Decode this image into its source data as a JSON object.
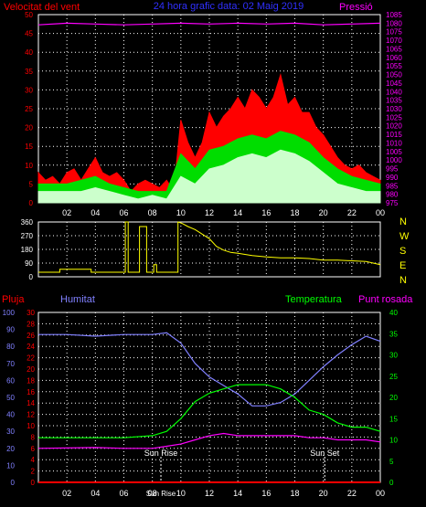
{
  "header": {
    "wind_label": "Velocitat del vent",
    "title": "24 hora grafic  data: 02 Maig 2019",
    "pressure_label": "Pressió"
  },
  "colors": {
    "wind_gust": "#ff0000",
    "wind_avg": "#00dd00",
    "wind_min": "#ccffcc",
    "pressure": "#ff00ff",
    "direction": "#ffff00",
    "humidity": "#8080ff",
    "temperature": "#00ff00",
    "dew_point": "#ff00ff",
    "rain": "#ff0000",
    "axis_left": "#ff0000",
    "axis_right": "#ff00ff",
    "axis_green": "#00ff00",
    "axis_blue": "#8080ff",
    "frame": "#ffffff",
    "title": "#3030ff"
  },
  "time_ticks": [
    "02",
    "04",
    "06",
    "08",
    "10",
    "12",
    "14",
    "16",
    "18",
    "20",
    "22",
    "00"
  ],
  "chart_data": [
    {
      "type": "line",
      "title": "24 hora grafic  data: 02 Maig 2019",
      "ylabel": "Velocitat del vent",
      "y2label": "Pressió",
      "ylim": [
        0,
        50
      ],
      "y_ticks": [
        0,
        5,
        10,
        15,
        20,
        25,
        30,
        35,
        40,
        45,
        50
      ],
      "y2lim": [
        975,
        1085
      ],
      "y2_ticks": [
        975,
        980,
        985,
        990,
        995,
        1000,
        1005,
        1010,
        1015,
        1020,
        1025,
        1030,
        1035,
        1040,
        1045,
        1050,
        1055,
        1060,
        1065,
        1070,
        1075,
        1080,
        1085
      ],
      "x_unit": "hour",
      "xlim": [
        0,
        24
      ],
      "series": [
        {
          "key": "gust",
          "points": [
            [
              0,
              8
            ],
            [
              0.5,
              6
            ],
            [
              1,
              7
            ],
            [
              1.5,
              5
            ],
            [
              2,
              8
            ],
            [
              2.5,
              9
            ],
            [
              3,
              6
            ],
            [
              3.5,
              9
            ],
            [
              4,
              12
            ],
            [
              4.5,
              8
            ],
            [
              5,
              7
            ],
            [
              5.5,
              8
            ],
            [
              6,
              6
            ],
            [
              6.5,
              3
            ],
            [
              7,
              5
            ],
            [
              7.5,
              6
            ],
            [
              8,
              5
            ],
            [
              8.5,
              4
            ],
            [
              9,
              6
            ],
            [
              9.5,
              3
            ],
            [
              10,
              22
            ],
            [
              10.5,
              16
            ],
            [
              11,
              12
            ],
            [
              11.5,
              16
            ],
            [
              12,
              24
            ],
            [
              12.5,
              20
            ],
            [
              13,
              23
            ],
            [
              13.5,
              25
            ],
            [
              14,
              28
            ],
            [
              14.5,
              25
            ],
            [
              15,
              30
            ],
            [
              15.5,
              28
            ],
            [
              16,
              25
            ],
            [
              16.5,
              28
            ],
            [
              17,
              34
            ],
            [
              17.5,
              26
            ],
            [
              18,
              28
            ],
            [
              18.5,
              24
            ],
            [
              19,
              24
            ],
            [
              19.5,
              20
            ],
            [
              20,
              18
            ],
            [
              20.5,
              15
            ],
            [
              21,
              12
            ],
            [
              21.5,
              10
            ],
            [
              22,
              9
            ],
            [
              22.5,
              10
            ],
            [
              23,
              8
            ],
            [
              23.5,
              7
            ],
            [
              24,
              6
            ]
          ]
        },
        {
          "key": "average",
          "points": [
            [
              0,
              5
            ],
            [
              1,
              5
            ],
            [
              2,
              5
            ],
            [
              3,
              6
            ],
            [
              4,
              7
            ],
            [
              5,
              5
            ],
            [
              6,
              4
            ],
            [
              7,
              3
            ],
            [
              8,
              3
            ],
            [
              9,
              3
            ],
            [
              10,
              13
            ],
            [
              11,
              9
            ],
            [
              12,
              14
            ],
            [
              13,
              15
            ],
            [
              14,
              17
            ],
            [
              15,
              18
            ],
            [
              16,
              17
            ],
            [
              17,
              19
            ],
            [
              18,
              18
            ],
            [
              19,
              16
            ],
            [
              20,
              12
            ],
            [
              21,
              9
            ],
            [
              22,
              7
            ],
            [
              23,
              6
            ],
            [
              24,
              5
            ]
          ]
        },
        {
          "key": "min",
          "points": [
            [
              0,
              3
            ],
            [
              1,
              3
            ],
            [
              2,
              3
            ],
            [
              3,
              3
            ],
            [
              4,
              4
            ],
            [
              5,
              3
            ],
            [
              6,
              2
            ],
            [
              7,
              1
            ],
            [
              8,
              2
            ],
            [
              9,
              1
            ],
            [
              10,
              7
            ],
            [
              11,
              5
            ],
            [
              12,
              9
            ],
            [
              13,
              10
            ],
            [
              14,
              12
            ],
            [
              15,
              13
            ],
            [
              16,
              12
            ],
            [
              17,
              14
            ],
            [
              18,
              13
            ],
            [
              19,
              11
            ],
            [
              20,
              8
            ],
            [
              21,
              5
            ],
            [
              22,
              4
            ],
            [
              23,
              3
            ],
            [
              24,
              3
            ]
          ]
        },
        {
          "key": "pressure",
          "points": [
            [
              0,
              1079
            ],
            [
              2,
              1080
            ],
            [
              4,
              1079.5
            ],
            [
              6,
              1079
            ],
            [
              8,
              1079.5
            ],
            [
              10,
              1080
            ],
            [
              12,
              1079.5
            ],
            [
              14,
              1080
            ],
            [
              16,
              1079.5
            ],
            [
              18,
              1080
            ],
            [
              20,
              1079
            ],
            [
              22,
              1079.5
            ],
            [
              24,
              1080
            ]
          ]
        }
      ]
    },
    {
      "type": "line",
      "ylabel": "",
      "ylim": [
        0,
        360
      ],
      "y_ticks": [
        0,
        90,
        180,
        270,
        360
      ],
      "y_right_labels": [
        "N",
        "W",
        "S",
        "E",
        "N"
      ],
      "x_unit": "hour",
      "xlim": [
        0,
        24
      ],
      "series": [
        {
          "key": "wind_direction",
          "points": [
            [
              0,
              30
            ],
            [
              1.5,
              30
            ],
            [
              1.5,
              50
            ],
            [
              3.7,
              50
            ],
            [
              3.7,
              30
            ],
            [
              6.1,
              30
            ],
            [
              6.1,
              360
            ],
            [
              6.3,
              360
            ],
            [
              6.3,
              30
            ],
            [
              7.1,
              30
            ],
            [
              7.1,
              330
            ],
            [
              7.6,
              330
            ],
            [
              7.6,
              30
            ],
            [
              8.1,
              30
            ],
            [
              8.1,
              80
            ],
            [
              8.3,
              80
            ],
            [
              8.3,
              30
            ],
            [
              9.8,
              30
            ],
            [
              9.8,
              360
            ],
            [
              10.1,
              350
            ],
            [
              10.5,
              330
            ],
            [
              11,
              310
            ],
            [
              11.5,
              280
            ],
            [
              12,
              250
            ],
            [
              12.5,
              200
            ],
            [
              13,
              175
            ],
            [
              13.5,
              160
            ],
            [
              14,
              155
            ],
            [
              15,
              140
            ],
            [
              16,
              130
            ],
            [
              17,
              125
            ],
            [
              18,
              125
            ],
            [
              19,
              120
            ],
            [
              20,
              110
            ],
            [
              21,
              110
            ],
            [
              22,
              105
            ],
            [
              23,
              100
            ],
            [
              24,
              80
            ]
          ]
        }
      ]
    },
    {
      "type": "line",
      "title": "",
      "labels": {
        "rain": "Pluja",
        "humidity": "Humitat",
        "temperature": "Temperatura",
        "dew_point": "Punt rosada"
      },
      "humidity_ylim": [
        0,
        100
      ],
      "humidity_ticks": [
        0,
        10,
        20,
        30,
        40,
        50,
        60,
        70,
        80,
        90,
        100
      ],
      "rain_ylim": [
        0,
        30
      ],
      "rain_ticks": [
        0,
        2,
        4,
        6,
        8,
        10,
        12,
        14,
        16,
        18,
        20,
        22,
        24,
        26,
        28,
        30
      ],
      "temp_ylim": [
        0,
        40
      ],
      "temp_ticks": [
        0,
        5,
        10,
        15,
        20,
        25,
        30,
        35,
        40
      ],
      "x_unit": "hour",
      "xlim": [
        0,
        24
      ],
      "annotations": [
        {
          "hour": 8.6,
          "text": "Sun Rise"
        },
        {
          "hour": 20.1,
          "text": "Sun Set"
        }
      ],
      "sun_rise_axis_label": "Sun Rise",
      "series": [
        {
          "key": "humidity",
          "points": [
            [
              0,
              87
            ],
            [
              2,
              87
            ],
            [
              4,
              86
            ],
            [
              6,
              87
            ],
            [
              8,
              87
            ],
            [
              9,
              88
            ],
            [
              10,
              82
            ],
            [
              11,
              70
            ],
            [
              12,
              62
            ],
            [
              13,
              57
            ],
            [
              14,
              52
            ],
            [
              15,
              45
            ],
            [
              16,
              45
            ],
            [
              17,
              47
            ],
            [
              18,
              52
            ],
            [
              19,
              60
            ],
            [
              20,
              68
            ],
            [
              21,
              75
            ],
            [
              22,
              81
            ],
            [
              23,
              86
            ],
            [
              24,
              83
            ]
          ]
        },
        {
          "key": "temperature",
          "points": [
            [
              0,
              10.5
            ],
            [
              4,
              10.5
            ],
            [
              6,
              10.5
            ],
            [
              8,
              11
            ],
            [
              9,
              12
            ],
            [
              10,
              15
            ],
            [
              11,
              19
            ],
            [
              12,
              21
            ],
            [
              13,
              22
            ],
            [
              14,
              23
            ],
            [
              15,
              23
            ],
            [
              16,
              23
            ],
            [
              17,
              22
            ],
            [
              18,
              20
            ],
            [
              19,
              17
            ],
            [
              20,
              16
            ],
            [
              21,
              14
            ],
            [
              22,
              13
            ],
            [
              23,
              13
            ],
            [
              24,
              12
            ]
          ]
        },
        {
          "key": "dew_point",
          "points": [
            [
              0,
              8
            ],
            [
              4,
              8.2
            ],
            [
              6,
              8
            ],
            [
              8,
              8
            ],
            [
              9,
              8.5
            ],
            [
              10,
              9
            ],
            [
              11,
              10
            ],
            [
              12,
              11
            ],
            [
              13,
              11.5
            ],
            [
              14,
              11
            ],
            [
              15,
              11
            ],
            [
              16,
              11
            ],
            [
              17,
              11
            ],
            [
              18,
              11
            ],
            [
              19,
              10.5
            ],
            [
              20,
              10.5
            ],
            [
              21,
              10
            ],
            [
              22,
              10
            ],
            [
              23,
              10
            ],
            [
              24,
              9.5
            ]
          ]
        },
        {
          "key": "rain",
          "points": [
            [
              0,
              0
            ],
            [
              24,
              0
            ]
          ]
        }
      ]
    }
  ]
}
